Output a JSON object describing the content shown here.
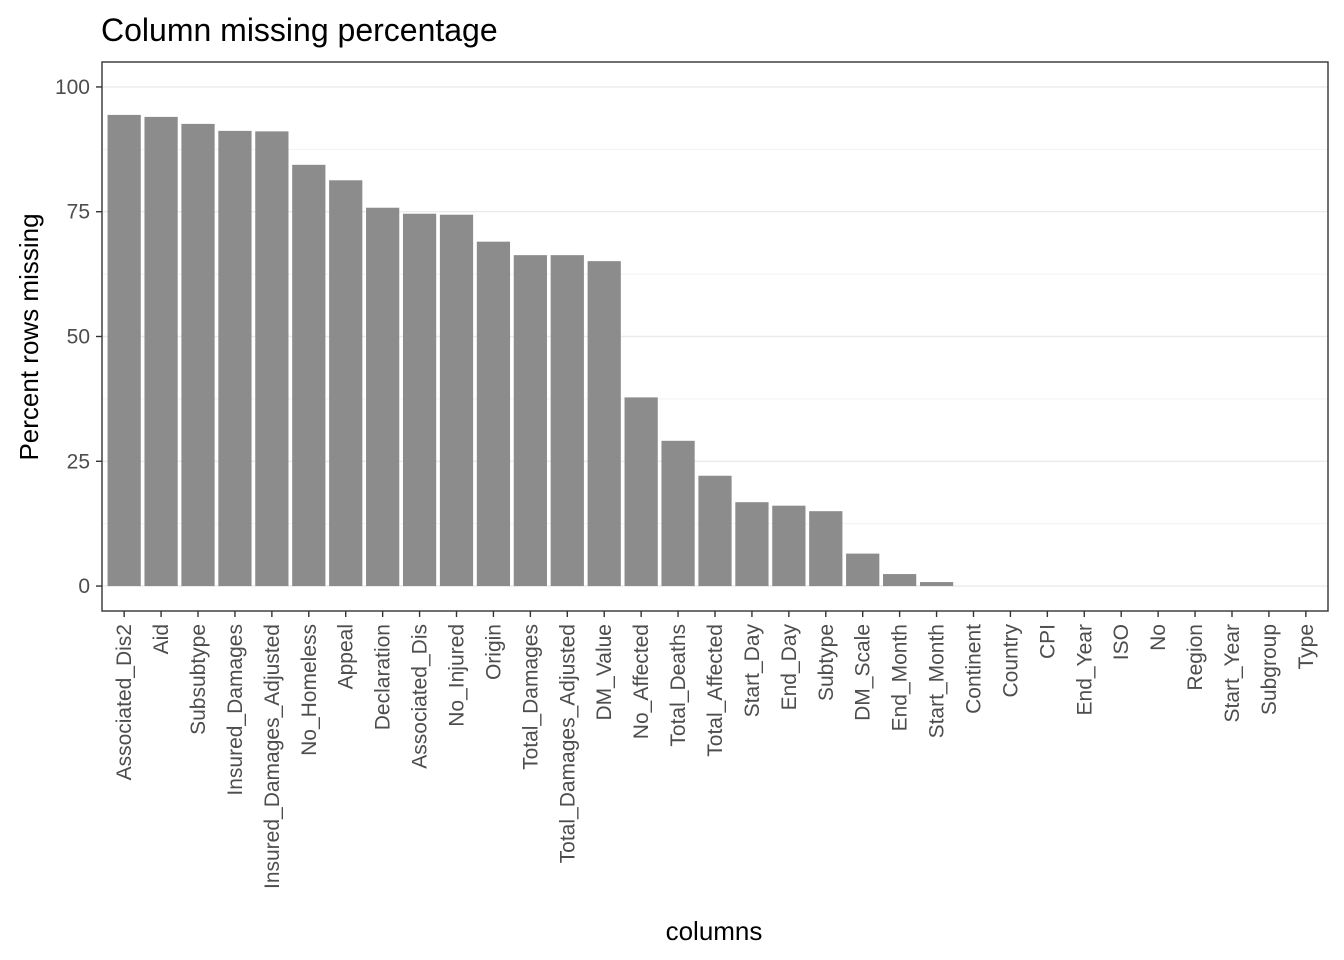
{
  "colors": {
    "bar": "#8c8c8c",
    "grid_major": "#ebebeb",
    "grid_minor": "#f2f2f2",
    "panel_border": "#333333",
    "tick_text": "#4d4d4d",
    "text": "#000000",
    "background": "#ffffff"
  },
  "chart_data": {
    "type": "bar",
    "title": "Column missing percentage",
    "xlabel": "columns",
    "ylabel": "Percent rows missing",
    "ylim": [
      -5,
      105
    ],
    "yticks": [
      0,
      25,
      50,
      75,
      100
    ],
    "grid": true,
    "categories": [
      "Associated_Dis2",
      "Aid",
      "Subsubtype",
      "Insured_Damages",
      "Insured_Damages_Adjusted",
      "No_Homeless",
      "Appeal",
      "Declaration",
      "Associated_Dis",
      "No_Injured",
      "Origin",
      "Total_Damages",
      "Total_Damages_Adjusted",
      "DM_Value",
      "No_Affected",
      "Total_Deaths",
      "Total_Affected",
      "Start_Day",
      "End_Day",
      "Subtype",
      "DM_Scale",
      "End_Month",
      "Start_Month",
      "Continent",
      "Country",
      "CPI",
      "End_Year",
      "ISO",
      "No",
      "Region",
      "Start_Year",
      "Subgroup",
      "Type"
    ],
    "values": [
      94.4,
      94.0,
      92.6,
      91.2,
      91.1,
      84.4,
      81.3,
      75.8,
      74.6,
      74.4,
      69.0,
      66.3,
      66.3,
      65.1,
      37.8,
      29.1,
      22.1,
      16.8,
      16.1,
      15.0,
      6.5,
      2.4,
      0.8,
      0,
      0,
      0,
      0,
      0,
      0,
      0,
      0,
      0,
      0
    ]
  }
}
